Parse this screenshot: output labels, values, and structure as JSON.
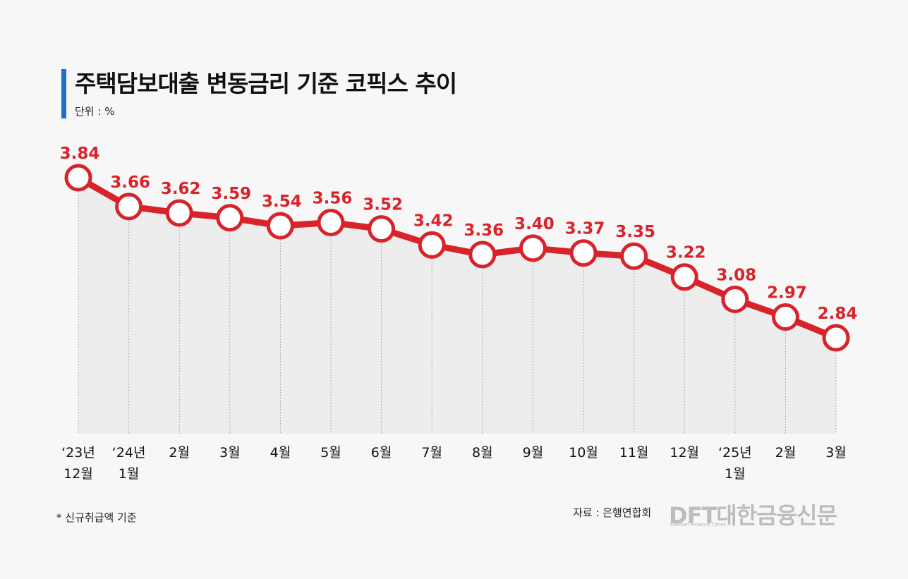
{
  "header": {
    "title": "주택담보대출 변동금리 기준 코픽스 추이",
    "unit": "단위 : %"
  },
  "footer": {
    "footnote": "* 신규취급액 기준",
    "source": "자료 : 은행연합회",
    "logo_text": "DFT대한금융신문",
    "logo_sub": "Daehan Finance Times"
  },
  "colors": {
    "accent_bar": "#1f6fd1",
    "line": "#d8232a",
    "area": "#ededed"
  },
  "chart_data": {
    "type": "line",
    "title": "주택담보대출 변동금리 기준 코픽스 추이",
    "ylabel": "단위 : %",
    "categories": [
      [
        "‘23년",
        "12월"
      ],
      [
        "‘24년",
        "1월"
      ],
      [
        "2월"
      ],
      [
        "3월"
      ],
      [
        "4월"
      ],
      [
        "5월"
      ],
      [
        "6월"
      ],
      [
        "7월"
      ],
      [
        "8월"
      ],
      [
        "9월"
      ],
      [
        "10월"
      ],
      [
        "11월"
      ],
      [
        "12월"
      ],
      [
        "‘25년",
        "1월"
      ],
      [
        "2월"
      ],
      [
        "3월"
      ]
    ],
    "series": [
      {
        "values": [
          3.84,
          3.66,
          3.62,
          3.59,
          3.54,
          3.56,
          3.52,
          3.42,
          3.36,
          3.4,
          3.37,
          3.35,
          3.22,
          3.08,
          2.97,
          2.84
        ]
      }
    ],
    "value_labels": [
      "3.84",
      "3.66",
      "3.62",
      "3.59",
      "3.54",
      "3.56",
      "3.52",
      "3.42",
      "3.36",
      "3.40",
      "3.37",
      "3.35",
      "3.22",
      "3.08",
      "2.97",
      "2.84"
    ],
    "grid": false,
    "legend": "none"
  }
}
